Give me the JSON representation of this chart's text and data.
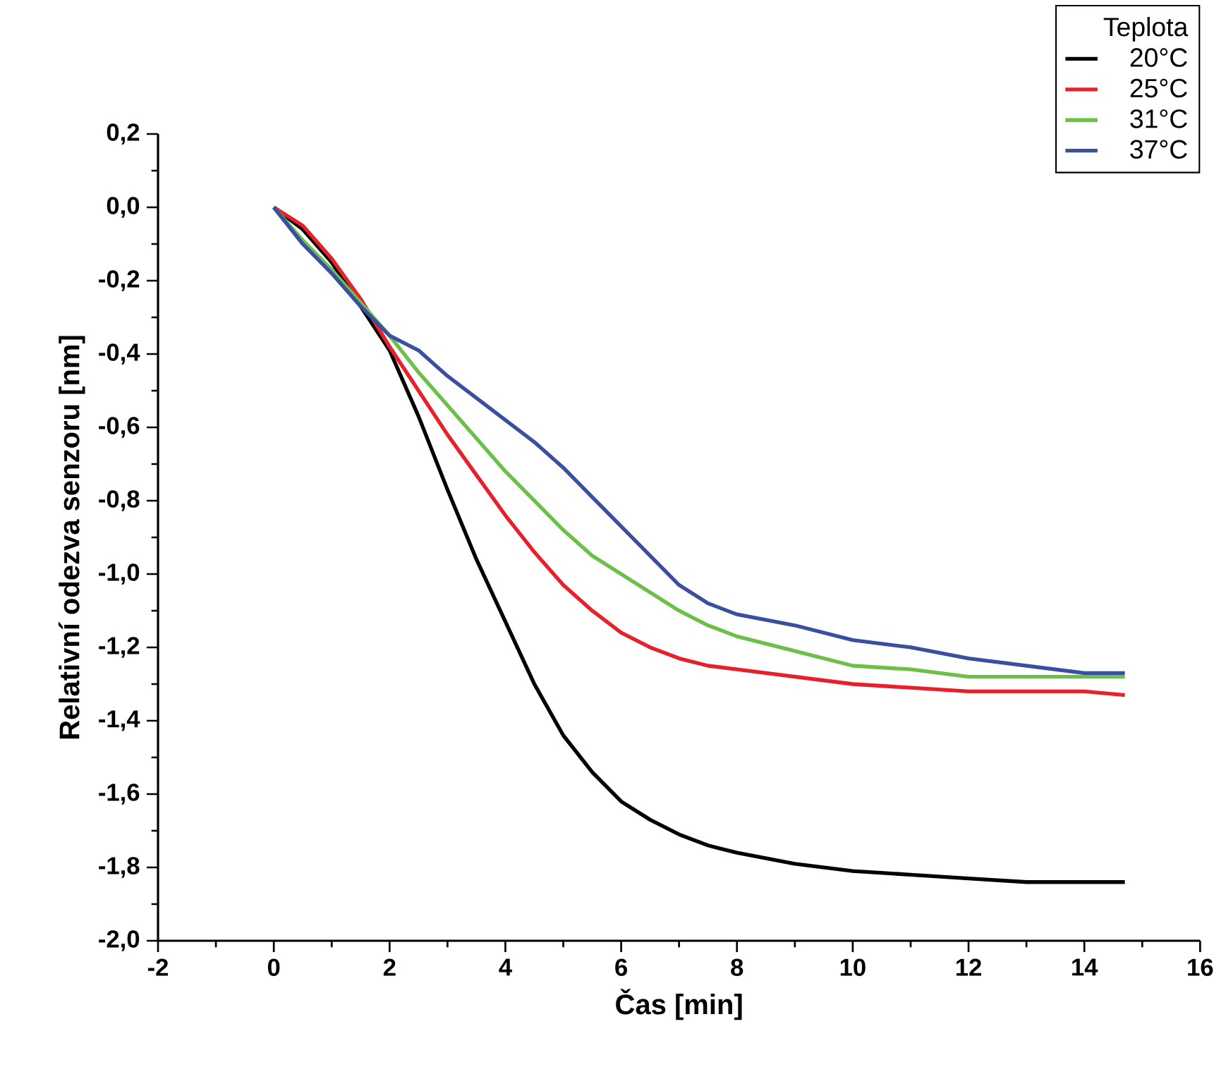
{
  "chart_data": {
    "type": "line",
    "xlabel": "Čas [min]",
    "ylabel": "Relativní odezva senzoru [nm]",
    "legend_title": "Teplota",
    "legend": "top right",
    "grid": false,
    "xlim": [
      -2,
      16
    ],
    "xticks": [
      -2,
      0,
      2,
      4,
      6,
      8,
      10,
      12,
      14,
      16
    ],
    "ylim": [
      -2.0,
      0.2
    ],
    "yticks": [
      {
        "value": 0.2,
        "label": "0,2"
      },
      {
        "value": 0.0,
        "label": "0,0"
      },
      {
        "value": -0.2,
        "label": "-0,2"
      },
      {
        "value": -0.4,
        "label": "-0,4"
      },
      {
        "value": -0.6,
        "label": "-0,6"
      },
      {
        "value": -0.8,
        "label": "-0,8"
      },
      {
        "value": -1.0,
        "label": "-1,0"
      },
      {
        "value": -1.2,
        "label": "-1,2"
      },
      {
        "value": -1.4,
        "label": "-1,4"
      },
      {
        "value": -1.6,
        "label": "-1,6"
      },
      {
        "value": -1.8,
        "label": "-1,8"
      },
      {
        "value": -2.0,
        "label": "-2,0"
      }
    ],
    "x": [
      0,
      0.5,
      1,
      1.5,
      2,
      2.5,
      3,
      3.5,
      4,
      4.5,
      5,
      5.5,
      6,
      6.5,
      7,
      7.5,
      8,
      9,
      10,
      11,
      12,
      13,
      14,
      14.7
    ],
    "series": [
      {
        "name": "20°C",
        "color": "#000000",
        "values": [
          0,
          -0.06,
          -0.15,
          -0.27,
          -0.39,
          -0.57,
          -0.77,
          -0.96,
          -1.13,
          -1.3,
          -1.44,
          -1.54,
          -1.62,
          -1.67,
          -1.71,
          -1.74,
          -1.76,
          -1.79,
          -1.81,
          -1.82,
          -1.83,
          -1.84,
          -1.84,
          -1.84
        ]
      },
      {
        "name": "25°C",
        "color": "#e8202a",
        "values": [
          0,
          -0.05,
          -0.14,
          -0.25,
          -0.38,
          -0.5,
          -0.62,
          -0.73,
          -0.84,
          -0.94,
          -1.03,
          -1.1,
          -1.16,
          -1.2,
          -1.23,
          -1.25,
          -1.26,
          -1.28,
          -1.3,
          -1.31,
          -1.32,
          -1.32,
          -1.32,
          -1.33
        ]
      },
      {
        "name": "31°C",
        "color": "#6cc04a",
        "values": [
          0,
          -0.09,
          -0.17,
          -0.26,
          -0.35,
          -0.45,
          -0.54,
          -0.63,
          -0.72,
          -0.8,
          -0.88,
          -0.95,
          -1.0,
          -1.05,
          -1.1,
          -1.14,
          -1.17,
          -1.21,
          -1.25,
          -1.26,
          -1.28,
          -1.28,
          -1.28,
          -1.28
        ]
      },
      {
        "name": "37°C",
        "color": "#3a4fa0",
        "values": [
          0,
          -0.1,
          -0.18,
          -0.27,
          -0.35,
          -0.39,
          -0.46,
          -0.52,
          -0.58,
          -0.64,
          -0.71,
          -0.79,
          -0.87,
          -0.95,
          -1.03,
          -1.08,
          -1.11,
          -1.14,
          -1.18,
          -1.2,
          -1.23,
          -1.25,
          -1.27,
          -1.27
        ]
      }
    ]
  }
}
